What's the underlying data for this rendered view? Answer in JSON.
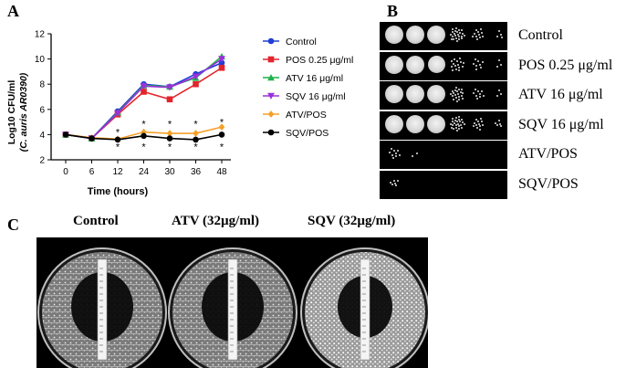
{
  "panels": {
    "a": "A",
    "b": "B",
    "c": "C"
  },
  "chart_data": {
    "type": "line",
    "x": [
      0,
      6,
      12,
      24,
      30,
      36,
      48
    ],
    "xticks": [
      "0",
      "6",
      "12",
      "24",
      "30",
      "36",
      "48"
    ],
    "xlabel": "Time (hours)",
    "ylabel_line1": "Log10 CFU/ml",
    "ylabel_line2": "(C. auris AR0390)",
    "ylim": [
      2,
      12
    ],
    "yticks": [
      2,
      4,
      6,
      8,
      10,
      12
    ],
    "legend_position": "right",
    "significance_marker": "*",
    "significance_points": [
      {
        "x": 12,
        "y": 4.2
      },
      {
        "x": 24,
        "y": 4.85
      },
      {
        "x": 30,
        "y": 4.85
      },
      {
        "x": 36,
        "y": 4.85
      },
      {
        "x": 48,
        "y": 5.0
      },
      {
        "x": 12,
        "y": 3.05
      },
      {
        "x": 24,
        "y": 3.05
      },
      {
        "x": 30,
        "y": 3.05
      },
      {
        "x": 36,
        "y": 3.05
      },
      {
        "x": 48,
        "y": 3.05
      }
    ],
    "series": [
      {
        "name": "Control",
        "color": "#1f3fd6",
        "marker": "circle",
        "values": [
          4.0,
          3.7,
          5.85,
          8.0,
          7.8,
          8.8,
          9.7
        ]
      },
      {
        "name": "POS 0.25 μg/ml",
        "color": "#e3242b",
        "marker": "square",
        "values": [
          4.0,
          3.7,
          5.6,
          7.4,
          6.8,
          8.0,
          9.3
        ]
      },
      {
        "name": "ATV 16 μg/ml",
        "color": "#22b14c",
        "marker": "triangle",
        "values": [
          4.0,
          3.7,
          5.75,
          7.9,
          7.8,
          8.5,
          10.2
        ]
      },
      {
        "name": "SQV 16 μg/ml",
        "color": "#9b30d9",
        "marker": "triangle-down",
        "values": [
          4.0,
          3.7,
          5.7,
          7.85,
          7.75,
          8.6,
          10.0
        ]
      },
      {
        "name": "ATV/POS",
        "color": "#f5a02a",
        "marker": "diamond",
        "values": [
          4.0,
          3.75,
          3.65,
          4.2,
          4.1,
          4.1,
          4.6
        ]
      },
      {
        "name": "SQV/POS",
        "color": "#000000",
        "marker": "circle",
        "values": [
          4.0,
          3.7,
          3.6,
          3.9,
          3.7,
          3.6,
          4.0
        ]
      }
    ]
  },
  "spot_assay": {
    "rows": [
      {
        "label": "Control",
        "spots": [
          1,
          1,
          1,
          0.75,
          0.35,
          0.12
        ]
      },
      {
        "label": "POS 0.25 μg/ml",
        "spots": [
          1,
          1,
          0.85,
          0.5,
          0.28,
          0.1
        ]
      },
      {
        "label": "ATV 16 μg/ml",
        "spots": [
          1,
          1,
          0.9,
          0.65,
          0.3,
          0.1
        ]
      },
      {
        "label": "SQV 16 μg/ml",
        "spots": [
          1,
          1,
          1,
          0.8,
          0.4,
          0.15
        ]
      },
      {
        "label": "ATV/POS",
        "spots": [
          0.3,
          0.05,
          0,
          0,
          0,
          0
        ]
      },
      {
        "label": "SQV/POS",
        "spots": [
          0.2,
          0,
          0,
          0,
          0,
          0
        ]
      }
    ]
  },
  "plates": [
    {
      "title": "Control",
      "halo": "clear"
    },
    {
      "title": "ATV (32µg/ml)",
      "halo": "clear"
    },
    {
      "title": "SQV (32µg/ml)",
      "halo": "dense"
    }
  ]
}
